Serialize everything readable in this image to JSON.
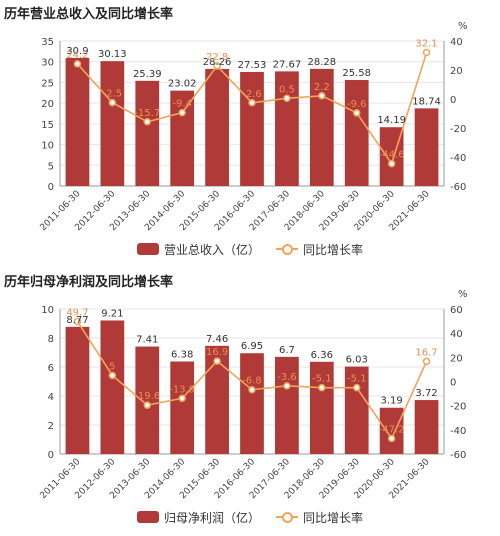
{
  "colors": {
    "bar": "#b03a37",
    "line": "#f0a55a",
    "bar_label": "#333333",
    "line_label": "#e88f55"
  },
  "chart_data": [
    {
      "type": "bar",
      "title": "历年营业总收入及同比增长率",
      "categories": [
        "2011-06-30",
        "2012-06-30",
        "2013-06-30",
        "2014-06-30",
        "2015-06-30",
        "2016-06-30",
        "2017-06-30",
        "2018-06-30",
        "2019-06-30",
        "2020-06-30",
        "2021-06-30"
      ],
      "y_ticks": [
        0,
        5,
        10,
        15,
        20,
        25,
        30,
        35
      ],
      "y2_ticks": [
        -60,
        -40,
        -20,
        0,
        20,
        40
      ],
      "y2_unit": "%",
      "ylim": [
        0,
        35
      ],
      "y2lim": [
        -60,
        40
      ],
      "grid": true,
      "legend_position": "bottom",
      "series": [
        {
          "name": "营业总收入（亿）",
          "kind": "bar",
          "axis": "left",
          "values": [
            30.9,
            30.13,
            25.39,
            23.02,
            28.26,
            27.53,
            27.67,
            28.28,
            25.58,
            14.19,
            18.74
          ],
          "labels": [
            "30.9",
            "30.13",
            "25.39",
            "23.02",
            "28.26",
            "27.53",
            "27.67",
            "28.28",
            "25.58",
            "14.19",
            "18.74"
          ]
        },
        {
          "name": "同比增长率",
          "kind": "line",
          "axis": "right",
          "values": [
            24.2,
            -2.5,
            -15.7,
            -9.4,
            22.8,
            -2.6,
            0.5,
            2.2,
            -9.6,
            -44.6,
            32.1
          ],
          "labels": [
            "24.2",
            "-2.5",
            "-15.7",
            "-9.4",
            "22.8",
            "-2.6",
            "0.5",
            "2.2",
            "-9.6",
            "-44.6",
            "32.1"
          ]
        }
      ]
    },
    {
      "type": "bar",
      "title": "历年归母净利润及同比增长率",
      "categories": [
        "2011-06-30",
        "2012-06-30",
        "2013-06-30",
        "2014-06-30",
        "2015-06-30",
        "2016-06-30",
        "2017-06-30",
        "2018-06-30",
        "2019-06-30",
        "2020-06-30",
        "2021-06-30"
      ],
      "y_ticks": [
        0,
        2,
        4,
        6,
        8,
        10
      ],
      "y2_ticks": [
        -60,
        -40,
        -20,
        0,
        20,
        40,
        60
      ],
      "y2_unit": "%",
      "ylim": [
        0,
        10
      ],
      "y2lim": [
        -60,
        60
      ],
      "grid": true,
      "legend_position": "bottom",
      "series": [
        {
          "name": "归母净利润（亿）",
          "kind": "bar",
          "axis": "left",
          "values": [
            8.77,
            9.21,
            7.41,
            6.38,
            7.46,
            6.95,
            6.7,
            6.36,
            6.03,
            3.19,
            3.72
          ],
          "labels": [
            "8.77",
            "9.21",
            "7.41",
            "6.38",
            "7.46",
            "6.95",
            "6.7",
            "6.36",
            "6.03",
            "3.19",
            "3.72"
          ]
        },
        {
          "name": "同比增长率",
          "kind": "line",
          "axis": "right",
          "values": [
            49.7,
            5.0,
            -19.6,
            -13.9,
            16.9,
            -6.8,
            -3.6,
            -5.1,
            -5.1,
            -47.2,
            16.7
          ],
          "labels": [
            "49.7",
            "5",
            "-19.6",
            "-13.9",
            "16.9",
            "-6.8",
            "-3.6",
            "-5.1",
            "-5.1",
            "-47.2",
            "16.7"
          ]
        }
      ]
    }
  ]
}
